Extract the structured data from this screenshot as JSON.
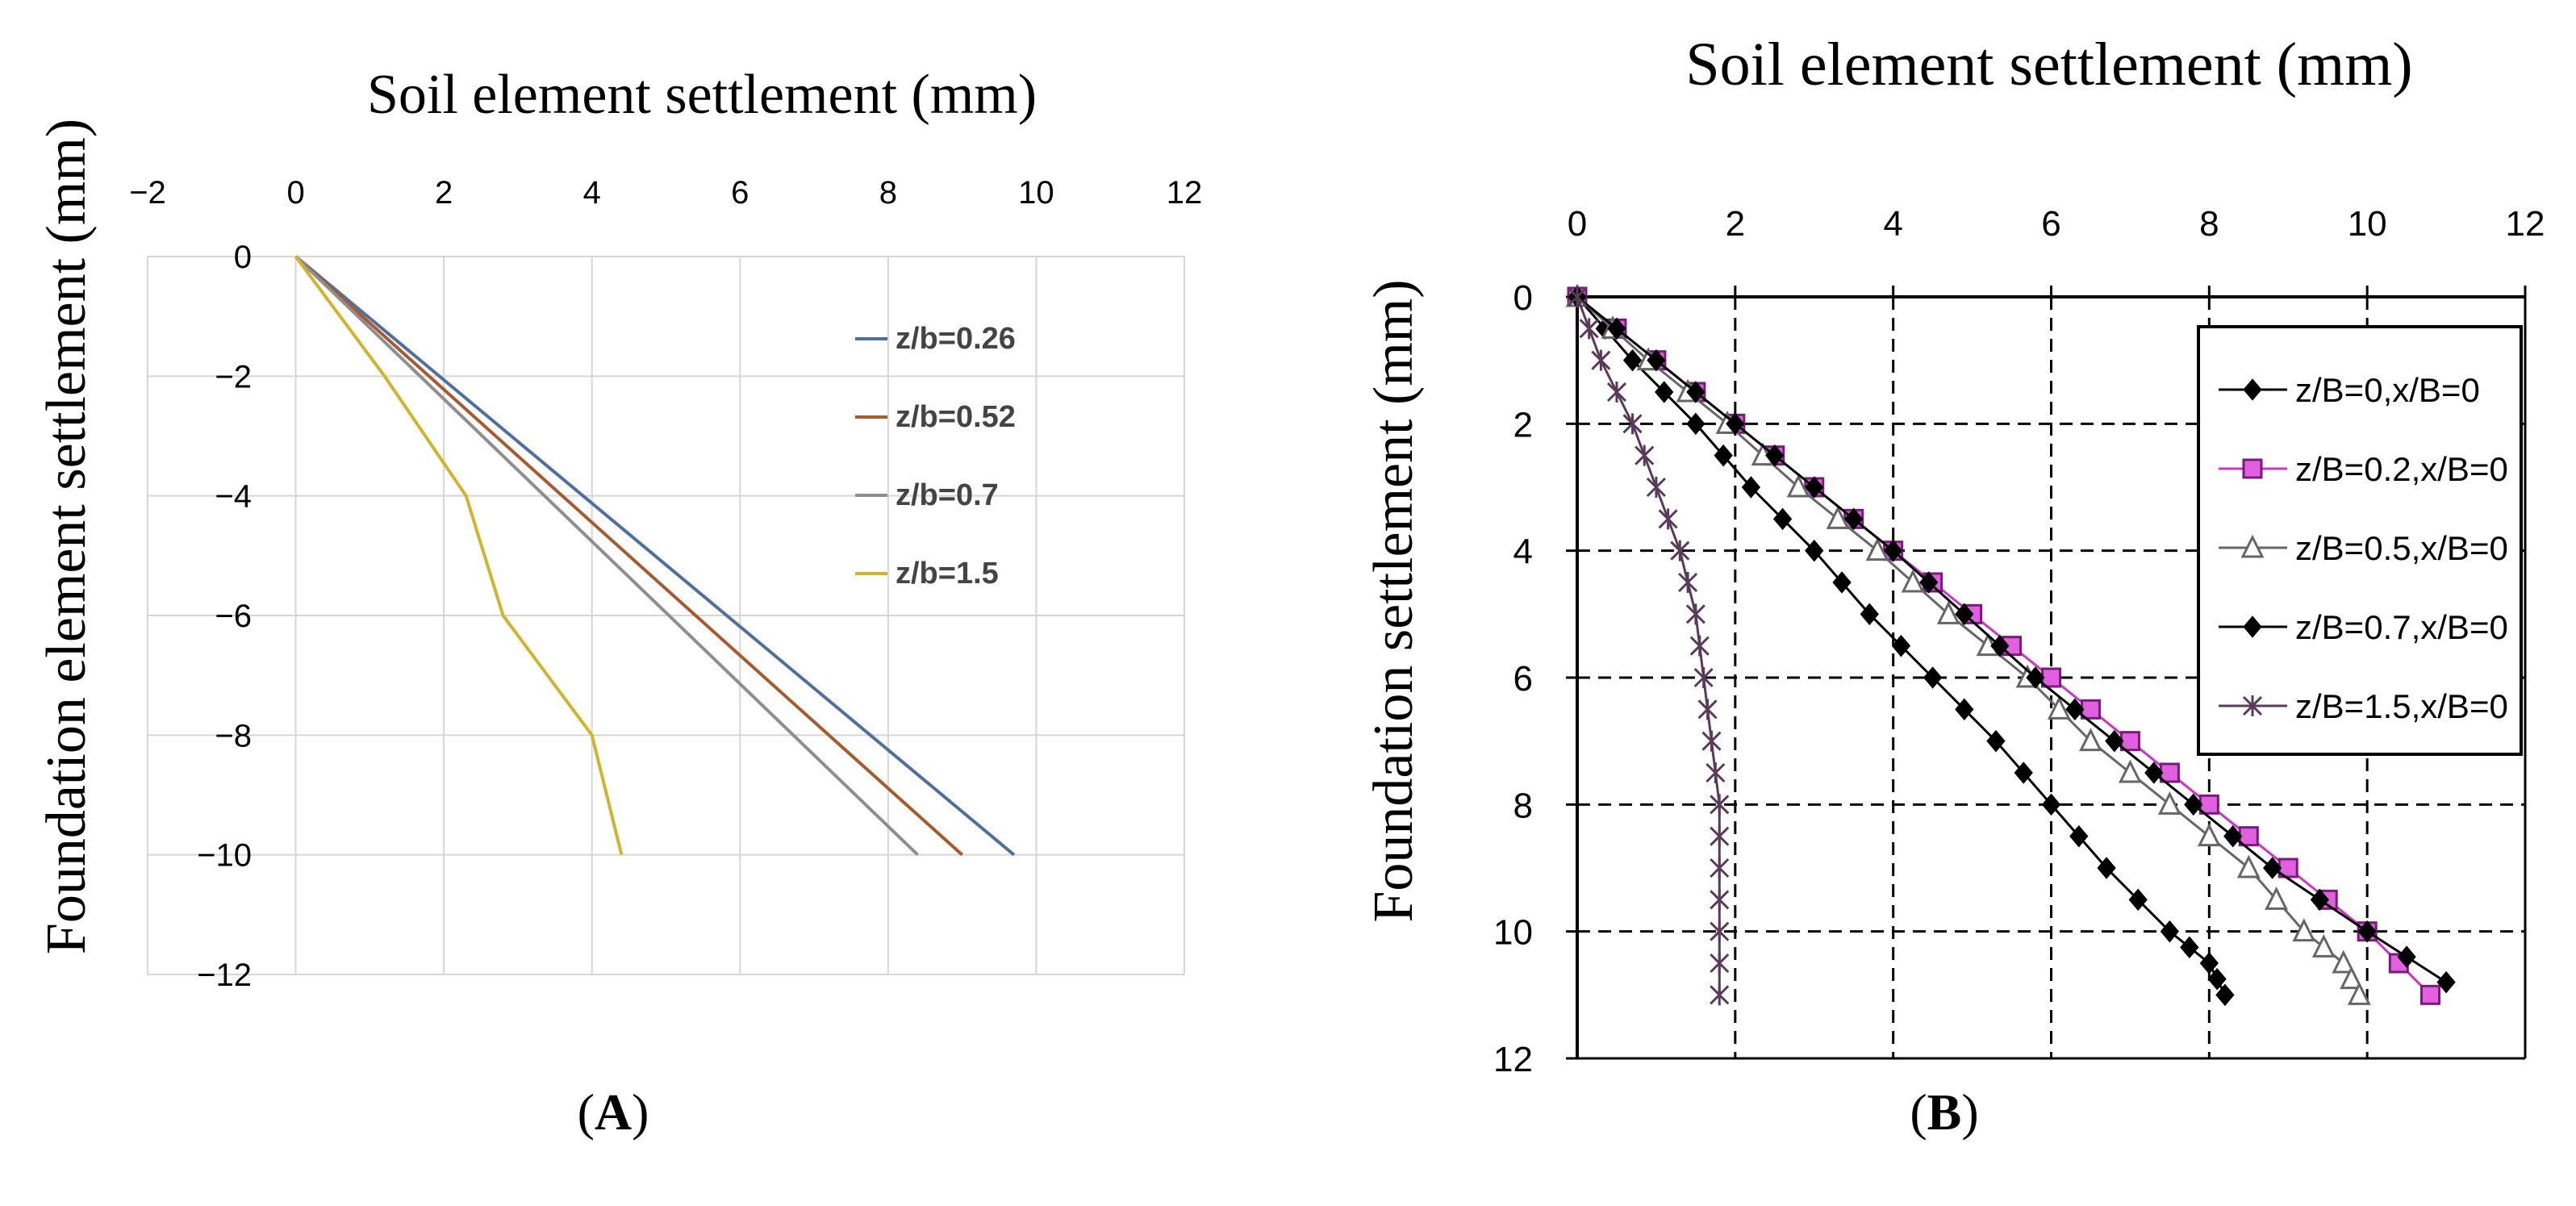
{
  "chart_data": [
    {
      "type": "line",
      "panel_label": "A",
      "xlabel": "Soil element settlement (mm)",
      "ylabel": "Foundation element settlement (mm)",
      "xlim": [
        -2,
        12
      ],
      "ylim": [
        -12,
        0
      ],
      "xticks": [
        -2,
        0,
        2,
        4,
        6,
        8,
        10,
        12
      ],
      "yticks": [
        0,
        -2,
        -4,
        -6,
        -8,
        -10,
        -12
      ],
      "grid": true,
      "legend_position": "right",
      "series": [
        {
          "name": "z/b=0.26",
          "color": "#4e6fa0",
          "points": [
            [
              0,
              0
            ],
            [
              9.7,
              -10
            ]
          ]
        },
        {
          "name": "z/b=0.52",
          "color": "#a85a2c",
          "points": [
            [
              0,
              0
            ],
            [
              9.0,
              -10
            ]
          ]
        },
        {
          "name": "z/b=0.7",
          "color": "#8e8e8e",
          "points": [
            [
              0,
              0
            ],
            [
              8.4,
              -10
            ]
          ]
        },
        {
          "name": "z/b=1.5",
          "color": "#d2b42a",
          "points": [
            [
              0,
              0
            ],
            [
              1.2,
              -2
            ],
            [
              2.3,
              -4
            ],
            [
              2.8,
              -6
            ],
            [
              4.0,
              -8
            ],
            [
              4.4,
              -10
            ]
          ]
        }
      ]
    },
    {
      "type": "line",
      "panel_label": "B",
      "xlabel": "Soil element settlement (mm)",
      "ylabel": "Foundation settlement (mm)",
      "xlim": [
        0,
        12
      ],
      "ylim": [
        0,
        12
      ],
      "y_inverted": true,
      "xticks": [
        0,
        2,
        4,
        6,
        8,
        10,
        12
      ],
      "yticks": [
        0,
        2,
        4,
        6,
        8,
        10,
        12
      ],
      "grid": true,
      "grid_style": "dashed",
      "legend_position": "top-right",
      "series": [
        {
          "name": "z/B=0,x/B=0",
          "color": "#000000",
          "marker": "diamond",
          "points": [
            [
              0,
              0
            ],
            [
              0.7,
              1
            ],
            [
              1.5,
              2
            ],
            [
              2.2,
              3
            ],
            [
              3.0,
              4
            ],
            [
              3.7,
              5
            ],
            [
              4.5,
              6
            ],
            [
              5.3,
              7
            ],
            [
              6.0,
              8
            ],
            [
              6.7,
              9
            ],
            [
              7.5,
              10
            ],
            [
              8.0,
              10.5
            ],
            [
              8.2,
              11
            ]
          ]
        },
        {
          "name": "z/B=0.2,x/B=0",
          "color": "#cc33cc",
          "marker": "square",
          "points": [
            [
              0,
              0
            ],
            [
              1.0,
              1
            ],
            [
              2.0,
              2
            ],
            [
              3.0,
              3
            ],
            [
              4.0,
              4
            ],
            [
              5.0,
              5
            ],
            [
              6.0,
              6
            ],
            [
              7.0,
              7
            ],
            [
              8.0,
              8
            ],
            [
              9.0,
              9
            ],
            [
              10.0,
              10
            ],
            [
              10.8,
              11
            ]
          ]
        },
        {
          "name": "z/B=0.5,x/B=0",
          "color": "#666666",
          "marker": "triangle",
          "points": [
            [
              0,
              0
            ],
            [
              0.9,
              1
            ],
            [
              1.9,
              2
            ],
            [
              2.8,
              3
            ],
            [
              3.8,
              4
            ],
            [
              4.7,
              5
            ],
            [
              5.7,
              6
            ],
            [
              6.5,
              7
            ],
            [
              7.5,
              8
            ],
            [
              8.5,
              9
            ],
            [
              9.2,
              10
            ],
            [
              9.7,
              10.5
            ],
            [
              9.9,
              11
            ]
          ]
        },
        {
          "name": "z/B=0.7,x/B=0",
          "color": "#000000",
          "marker": "diamond",
          "points": [
            [
              0,
              0
            ],
            [
              1.0,
              1
            ],
            [
              2.0,
              2
            ],
            [
              3.0,
              3
            ],
            [
              4.0,
              4
            ],
            [
              4.9,
              5
            ],
            [
              5.8,
              6
            ],
            [
              6.8,
              7
            ],
            [
              7.8,
              8
            ],
            [
              8.8,
              9
            ],
            [
              10.0,
              10
            ],
            [
              11.0,
              10.8
            ]
          ]
        },
        {
          "name": "z/B=1.5,x/B=0",
          "color": "#5a3a5a",
          "marker": "star",
          "points": [
            [
              0,
              0
            ],
            [
              0.3,
              1
            ],
            [
              0.7,
              2
            ],
            [
              1.0,
              3
            ],
            [
              1.3,
              4
            ],
            [
              1.5,
              5
            ],
            [
              1.6,
              6
            ],
            [
              1.7,
              7
            ],
            [
              1.8,
              8
            ],
            [
              1.8,
              9
            ],
            [
              1.8,
              10
            ],
            [
              1.8,
              11
            ]
          ]
        }
      ]
    }
  ]
}
